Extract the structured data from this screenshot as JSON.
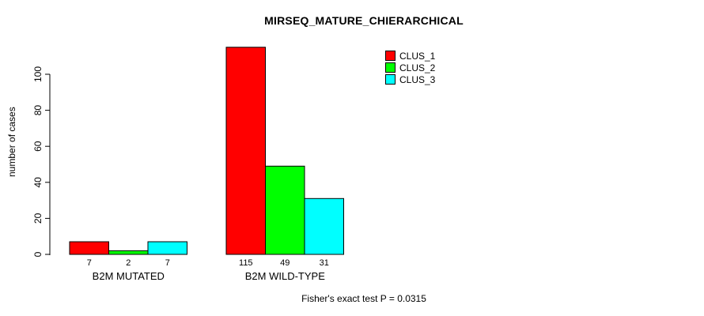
{
  "chart_data": {
    "type": "bar",
    "title": "MIRSEQ_MATURE_CHIERARCHICAL",
    "ylabel": "number of cases",
    "xlabel": "",
    "categories": [
      "B2M MUTATED",
      "B2M WILD-TYPE"
    ],
    "series": [
      {
        "name": "CLUS_1",
        "color": "#ff0000",
        "values": [
          7,
          115
        ]
      },
      {
        "name": "CLUS_2",
        "color": "#00ff00",
        "values": [
          2,
          49
        ]
      },
      {
        "name": "CLUS_3",
        "color": "#00ffff",
        "values": [
          7,
          31
        ]
      }
    ],
    "yticks": [
      0,
      20,
      40,
      60,
      80,
      100
    ],
    "ylim": [
      0,
      115
    ],
    "bar_value_labels": [
      [
        7,
        2,
        7
      ],
      [
        115,
        49,
        31
      ]
    ],
    "grid": false,
    "legend_position": "top-right",
    "bar_border_color": "#000000",
    "footnote": "Fisher's exact test P = 0.0315"
  }
}
